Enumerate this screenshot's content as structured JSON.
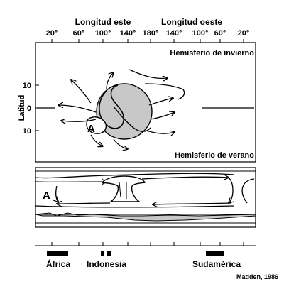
{
  "top_axis": {
    "left_title": "Longitud este",
    "right_title": "Longitud oeste",
    "ticks": [
      "20°",
      "60°",
      "100°",
      "140°",
      "180°",
      "140°",
      "100°",
      "60°",
      "20°"
    ]
  },
  "left_axis": {
    "title": "Latitud",
    "ticks": [
      "10",
      "0",
      "10"
    ]
  },
  "panels": {
    "winter": {
      "label": "Hemisferio de invierno",
      "marker": "A"
    },
    "summer": {
      "label": "Hemisferio de verano",
      "marker": "A"
    }
  },
  "regions": [
    "África",
    "Indonesia",
    "Sudamérica"
  ],
  "credit": "Madden, 1986",
  "colors": {
    "ink": "#000000",
    "shade": "#c8c8c8",
    "background": "#ffffff"
  }
}
